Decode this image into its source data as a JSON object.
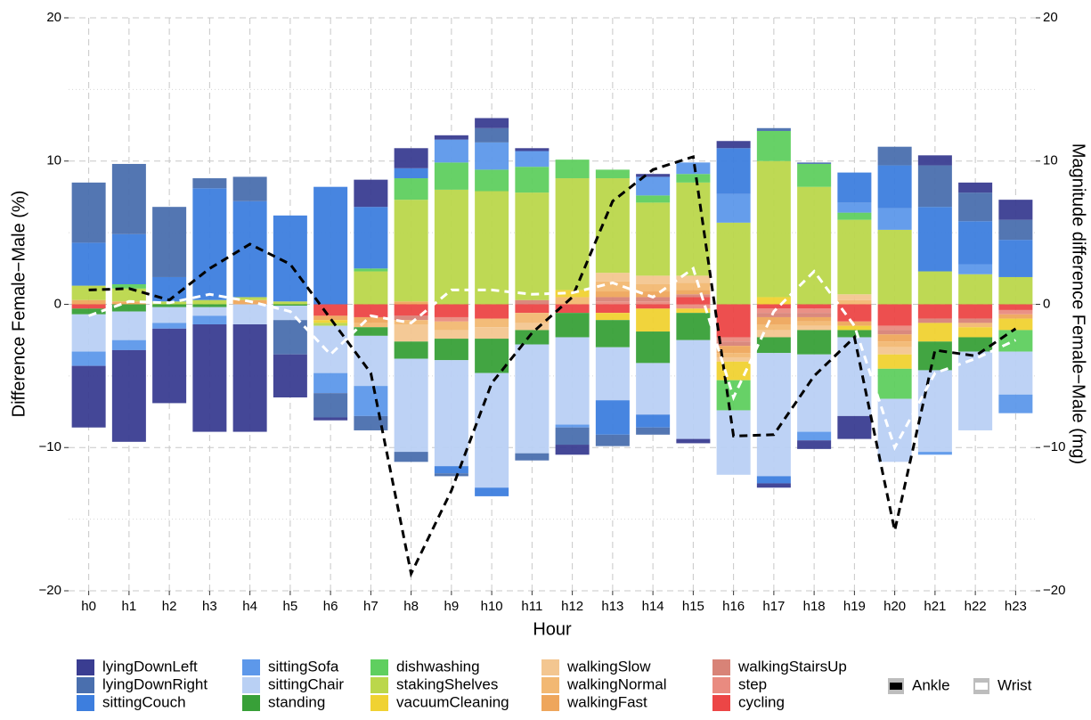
{
  "chart_data": {
    "type": "bar",
    "x_label": "Hour",
    "y_label": "Difference Female−Male (%)",
    "y2_label": "Magnitude difference Female−Male (mg)",
    "categories": [
      "h0",
      "h1",
      "h2",
      "h3",
      "h4",
      "h5",
      "h6",
      "h7",
      "h8",
      "h9",
      "h10",
      "h11",
      "h12",
      "h13",
      "h14",
      "h15",
      "h16",
      "h17",
      "h18",
      "h19",
      "h20",
      "h21",
      "h22",
      "h23"
    ],
    "ylim": [
      -20,
      20
    ],
    "yticks": [
      {
        "value": -20,
        "label": "−20"
      },
      {
        "value": -10,
        "label": "−10"
      },
      0,
      10,
      20
    ],
    "y2lim": [
      -20,
      20
    ],
    "y2ticks": [
      {
        "value": -20,
        "label": "−20"
      },
      {
        "value": -10,
        "label": "−10"
      },
      0,
      10,
      20
    ],
    "grid": true,
    "series": [
      {
        "name": "lyingDownLeft",
        "color": "#3a3d91",
        "values": [
          -4.3,
          -6.4,
          -5.2,
          -7.5,
          -7.5,
          -3.0,
          -0.2,
          1.9,
          1.4,
          0.3,
          0.7,
          0.2,
          -0.7,
          0,
          0.2,
          -0.3,
          0.5,
          -0.3,
          -0.6,
          -1.6,
          0,
          0.7,
          0.7,
          1.4
        ]
      },
      {
        "name": "lyingDownRight",
        "color": "#4a6fae",
        "values": [
          4.2,
          4.9,
          4.9,
          0.7,
          1.7,
          -2.4,
          -1.7,
          -1.0,
          -0.7,
          -0.2,
          1.0,
          -0.5,
          -1.2,
          -0.8,
          -0.5,
          0,
          0,
          0.2,
          0.1,
          0,
          1.3,
          2.9,
          2.0,
          1.4
        ]
      },
      {
        "name": "sittingCouch",
        "color": "#3d7ede",
        "values": [
          3.0,
          3.5,
          1.7,
          7.8,
          6.7,
          6.0,
          8.2,
          4.3,
          0.7,
          -0.5,
          -0.6,
          0,
          0,
          -2.4,
          -0.9,
          0,
          3.2,
          -0.5,
          0,
          2.1,
          3.0,
          4.5,
          3.0,
          2.6
        ]
      },
      {
        "name": "sittingSofa",
        "color": "#5d98ea",
        "values": [
          -1.0,
          -0.7,
          -0.4,
          -0.6,
          0,
          0,
          -1.4,
          -2.1,
          0,
          1.6,
          1.9,
          1.1,
          -0.2,
          0,
          1.3,
          0.8,
          2.0,
          0,
          -0.6,
          0.7,
          1.5,
          -0.2,
          0.7,
          -1.3
        ]
      },
      {
        "name": "sittingChair",
        "color": "#b9d0f4",
        "values": [
          -2.6,
          -2.0,
          -1.1,
          -0.6,
          -1.4,
          -1.0,
          -3.3,
          -3.5,
          -6.5,
          -7.4,
          -8.0,
          -7.6,
          -6.1,
          -3.7,
          -3.6,
          -6.9,
          -4.5,
          -8.6,
          -5.4,
          -5.5,
          -4.4,
          -5.7,
          -5.5,
          -3.0
        ]
      },
      {
        "name": "standing",
        "color": "#38a038",
        "values": [
          -0.4,
          -0.5,
          -0.2,
          -0.2,
          0,
          -0.1,
          0,
          -0.6,
          -1.2,
          -1.5,
          -2.4,
          -1.0,
          -1.7,
          -1.9,
          -2.2,
          -1.9,
          0,
          -1.1,
          -1.7,
          -0.5,
          0,
          -2.0,
          -1.0,
          0
        ]
      },
      {
        "name": "dishwashing",
        "color": "#5fcf5f",
        "values": [
          0,
          0.3,
          0,
          0,
          0,
          0,
          0,
          0.2,
          1.5,
          1.9,
          1.5,
          1.8,
          1.3,
          0.6,
          0.5,
          0.6,
          -2.1,
          2.1,
          1.6,
          0.5,
          -2.1,
          0,
          0,
          -1.5
        ]
      },
      {
        "name": "stakingShelves",
        "color": "#bbd74b",
        "values": [
          1.0,
          0.9,
          0.2,
          0.3,
          0.2,
          0.2,
          -0.2,
          2.3,
          7.1,
          8.0,
          7.9,
          7.5,
          7.8,
          6.6,
          5.1,
          6.5,
          5.7,
          9.5,
          8.2,
          5.2,
          5.2,
          2.3,
          2.1,
          1.9
        ]
      },
      {
        "name": "vacuumCleaning",
        "color": "#f0d232",
        "values": [
          0,
          0,
          0,
          0,
          0,
          0,
          -0.2,
          0,
          0,
          0,
          0,
          0,
          0.5,
          -0.5,
          -1.6,
          -0.3,
          -1.3,
          0.5,
          0,
          -0.3,
          -1.0,
          -1.3,
          -0.7,
          -0.8
        ]
      },
      {
        "name": "walkingSlow",
        "color": "#f3c690",
        "values": [
          0,
          0,
          0,
          0,
          0,
          0,
          0,
          0,
          -1.2,
          -0.6,
          -0.8,
          -0.5,
          0,
          0.6,
          0.6,
          0.5,
          -0.3,
          -0.5,
          -0.3,
          0.4,
          -0.5,
          0,
          0,
          0
        ]
      },
      {
        "name": "walkingNormal",
        "color": "#f2b872",
        "values": [
          0,
          0,
          0,
          0,
          0,
          0,
          0,
          -0.3,
          -0.3,
          -0.6,
          -0.6,
          -0.7,
          0.5,
          0.7,
          0.5,
          0.5,
          -0.3,
          -0.4,
          -0.3,
          0.3,
          -0.4,
          0,
          -0.3,
          0
        ]
      },
      {
        "name": "walkingFast",
        "color": "#eea65c",
        "values": [
          0.3,
          0.2,
          0,
          0,
          0.3,
          0,
          -0.3,
          -0.4,
          0.2,
          0,
          0,
          0,
          0,
          0.4,
          0.4,
          0.3,
          -0.5,
          -0.5,
          -0.3,
          -0.3,
          -0.5,
          0,
          0,
          -0.3
        ]
      },
      {
        "name": "walkingStairsUp",
        "color": "#d88377",
        "values": [
          0,
          0,
          0,
          0,
          0,
          0,
          0,
          0,
          -0.3,
          0,
          0,
          0.3,
          0,
          0.3,
          0.3,
          0.2,
          -0.3,
          -0.3,
          -0.3,
          0,
          -0.3,
          -0.3,
          -0.3,
          0
        ]
      },
      {
        "name": "step",
        "color": "#e98b80",
        "values": [
          0,
          0,
          0,
          0,
          0,
          0,
          0,
          0,
          0,
          -0.3,
          0,
          0,
          0,
          0.2,
          0.2,
          -0.3,
          -0.3,
          -0.3,
          -0.3,
          0,
          -0.3,
          0,
          0,
          -0.3
        ]
      },
      {
        "name": "cycling",
        "color": "#ec4646",
        "values": [
          -0.3,
          0,
          0,
          0,
          0,
          0,
          -0.8,
          -0.9,
          -0.8,
          -0.9,
          -1.0,
          -0.6,
          -0.6,
          -0.6,
          -0.3,
          0.5,
          -2.3,
          -0.3,
          -0.3,
          -1.2,
          -1.5,
          -1.0,
          -1.0,
          -0.4
        ]
      },
      {
        "name": "Ankle",
        "color": "#000000",
        "type": "line",
        "axis": "y2",
        "values": [
          1.0,
          1.1,
          0.3,
          2.5,
          4.2,
          2.8,
          -1.0,
          -4.8,
          -18.8,
          -13.0,
          -5.5,
          -2.0,
          0.5,
          7.2,
          9.4,
          10.3,
          -9.2,
          -9.1,
          -5.0,
          -2.3,
          -15.8,
          -3.2,
          -3.6,
          -1.7
        ]
      },
      {
        "name": "Wrist",
        "color": "#ffffff",
        "type": "line",
        "axis": "y2",
        "values": [
          -0.8,
          0.2,
          0.1,
          0.7,
          0.2,
          -0.5,
          -3.5,
          -0.8,
          -1.3,
          1.0,
          1.0,
          0.7,
          0.8,
          1.5,
          0.5,
          2.5,
          -6.5,
          -0.5,
          2.3,
          -1.5,
          -10.0,
          -4.8,
          -3.8,
          -2.5
        ]
      }
    ]
  }
}
